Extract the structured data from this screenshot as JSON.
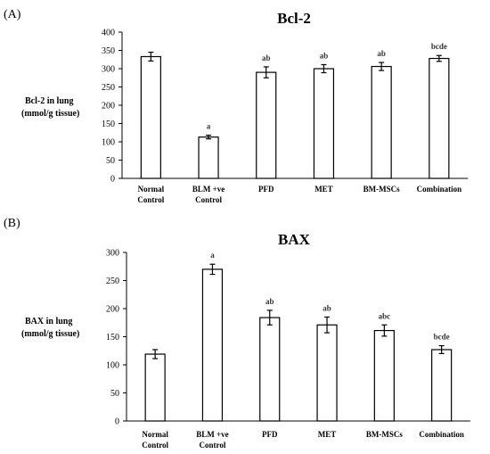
{
  "chart_data": [
    {
      "type": "bar",
      "panel": "(A)",
      "title": "Bcl-2",
      "ylabel_lines": [
        "Bcl-2 in lung",
        "(mmol/g tissue)"
      ],
      "xlabel": "",
      "ylim": [
        0,
        400
      ],
      "yticks": [
        0,
        50,
        100,
        150,
        200,
        250,
        300,
        350,
        400
      ],
      "categories": [
        [
          "Normal",
          "Control"
        ],
        [
          "BLM +ve",
          "Control"
        ],
        [
          "PFD"
        ],
        [
          "MET"
        ],
        [
          "BM-MSCs"
        ],
        [
          "Combination"
        ]
      ],
      "values": [
        333,
        113,
        290,
        300,
        306,
        328
      ],
      "errors": [
        12,
        5,
        15,
        11,
        11,
        8
      ],
      "labels": [
        "",
        "a",
        "ab",
        "ab",
        "ab",
        "bcde"
      ],
      "grid": false
    },
    {
      "type": "bar",
      "panel": "(B)",
      "title": "BAX",
      "ylabel_lines": [
        "BAX in lung",
        "(mmol/g tissue)"
      ],
      "xlabel": "",
      "ylim": [
        0,
        300
      ],
      "yticks": [
        0,
        50,
        100,
        150,
        200,
        250,
        300
      ],
      "categories": [
        [
          "Normal",
          "Control"
        ],
        [
          "BLM +ve",
          "Control"
        ],
        [
          "PFD"
        ],
        [
          "MET"
        ],
        [
          "BM-MSCs"
        ],
        [
          "Combination"
        ]
      ],
      "values": [
        119,
        270,
        184,
        171,
        161,
        127
      ],
      "errors": [
        8,
        9,
        13,
        14,
        10,
        7
      ],
      "labels": [
        "",
        "a",
        "ab",
        "ab",
        "abc",
        "bcde"
      ],
      "grid": false
    }
  ]
}
